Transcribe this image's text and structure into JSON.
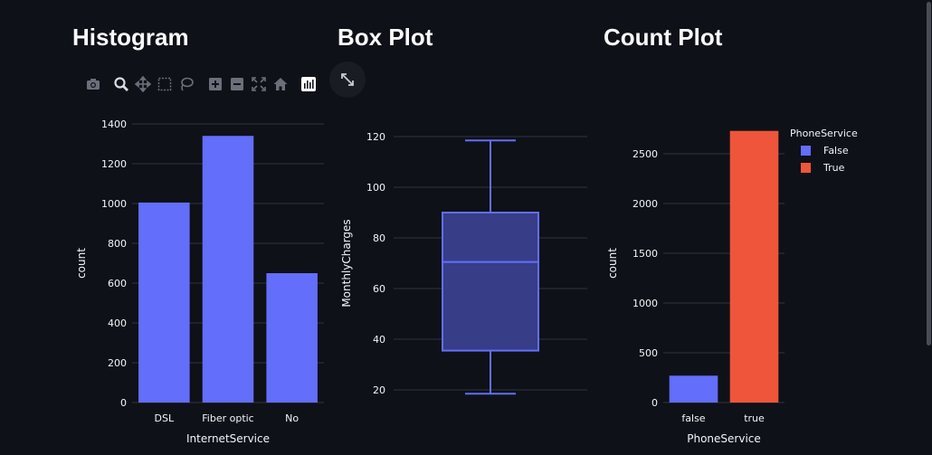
{
  "titles": {
    "histogram": "Histogram",
    "boxplot": "Box Plot",
    "countplot": "Count Plot"
  },
  "modebar": {
    "icons": [
      "camera-icon",
      "zoom-icon",
      "pan-icon",
      "box-select-icon",
      "lasso-icon",
      "zoom-in-icon",
      "zoom-out-icon",
      "autoscale-icon",
      "reset-axes-icon",
      "plotly-logo-icon"
    ]
  },
  "colors": {
    "background": "#0e1117",
    "grid": "#31333f",
    "series_blue": "#636efa",
    "series_red": "#ef553b",
    "box_fill": "#373d87"
  },
  "chart_data": [
    {
      "type": "bar",
      "name": "histogram",
      "categories": [
        "DSL",
        "Fiber optic",
        "No"
      ],
      "values": [
        1005,
        1340,
        650
      ],
      "xlabel": "InternetService",
      "ylabel": "count",
      "ylim": [
        0,
        1400
      ],
      "yticks": [
        0,
        200,
        400,
        600,
        800,
        1000,
        1200,
        1400
      ],
      "grid": true
    },
    {
      "type": "box",
      "name": "boxplot",
      "ylabel": "MonthlyCharges",
      "stats": {
        "min": 18.5,
        "q1": 35.5,
        "median": 70.5,
        "q3": 90,
        "max": 118.5
      },
      "ylim": [
        15,
        125
      ],
      "yticks": [
        20,
        40,
        60,
        80,
        100,
        120
      ],
      "grid": true
    },
    {
      "type": "bar",
      "name": "countplot",
      "categories": [
        "false",
        "true"
      ],
      "series": [
        {
          "name": "False",
          "category": "false",
          "value": 270
        },
        {
          "name": "True",
          "category": "true",
          "value": 2730
        }
      ],
      "xlabel": "PhoneService",
      "ylabel": "count",
      "ylim": [
        0,
        2800
      ],
      "yticks": [
        0,
        500,
        1000,
        1500,
        2000,
        2500
      ],
      "legend_title": "PhoneService",
      "legend_position": "top-right",
      "grid": true
    }
  ]
}
